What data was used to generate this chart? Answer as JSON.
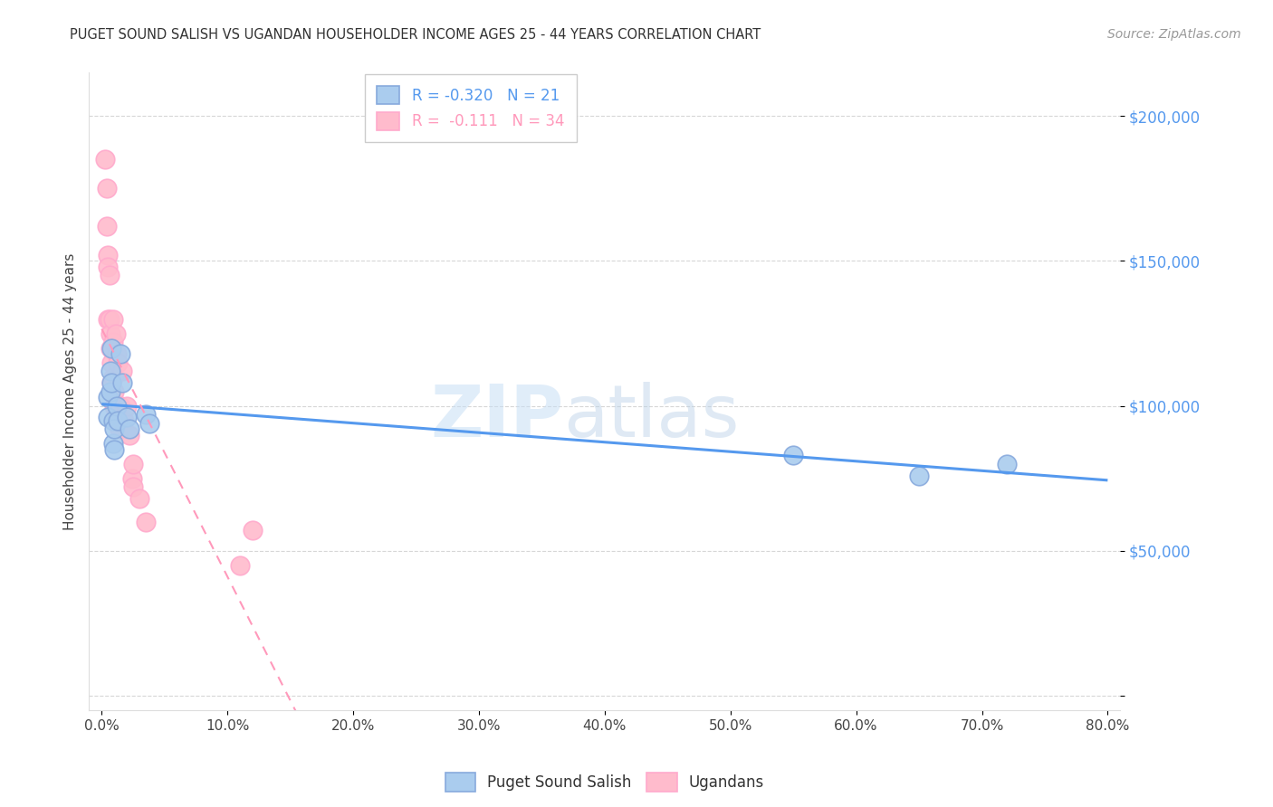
{
  "title": "PUGET SOUND SALISH VS UGANDAN HOUSEHOLDER INCOME AGES 25 - 44 YEARS CORRELATION CHART",
  "source": "Source: ZipAtlas.com",
  "ylabel": "Householder Income Ages 25 - 44 years",
  "xlabel_ticks": [
    "0.0%",
    "10.0%",
    "20.0%",
    "30.0%",
    "40.0%",
    "50.0%",
    "60.0%",
    "70.0%",
    "80.0%"
  ],
  "xlabel_vals": [
    0.0,
    0.1,
    0.2,
    0.3,
    0.4,
    0.5,
    0.6,
    0.7,
    0.8
  ],
  "ylim": [
    -5000,
    215000
  ],
  "xlim": [
    -0.01,
    0.81
  ],
  "ytick_vals": [
    0,
    50000,
    100000,
    150000,
    200000
  ],
  "ytick_labels": [
    "",
    "$50,000",
    "$100,000",
    "$150,000",
    "$200,000"
  ],
  "grid_color": "#cccccc",
  "background_color": "#ffffff",
  "watermark_zip": "ZIP",
  "watermark_atlas": "atlas",
  "legend_R_blue": "-0.320",
  "legend_N_blue": "21",
  "legend_R_pink": "-0.111",
  "legend_N_pink": "34",
  "blue_fill": "#aaccee",
  "pink_fill": "#ffbbcc",
  "blue_edge": "#88aadd",
  "pink_edge": "#ffaacc",
  "blue_line_color": "#5599ee",
  "pink_line_color": "#ff99bb",
  "puget_sound_x": [
    0.005,
    0.005,
    0.007,
    0.007,
    0.008,
    0.008,
    0.009,
    0.009,
    0.01,
    0.01,
    0.012,
    0.013,
    0.015,
    0.016,
    0.02,
    0.022,
    0.035,
    0.038,
    0.55,
    0.65,
    0.72
  ],
  "puget_sound_y": [
    103000,
    96000,
    112000,
    105000,
    120000,
    108000,
    95000,
    87000,
    85000,
    92000,
    100000,
    95000,
    118000,
    108000,
    96000,
    92000,
    97000,
    94000,
    83000,
    76000,
    80000
  ],
  "ugandan_x": [
    0.003,
    0.004,
    0.004,
    0.005,
    0.005,
    0.005,
    0.006,
    0.006,
    0.007,
    0.007,
    0.008,
    0.008,
    0.009,
    0.009,
    0.009,
    0.01,
    0.01,
    0.01,
    0.011,
    0.012,
    0.013,
    0.014,
    0.015,
    0.016,
    0.018,
    0.02,
    0.022,
    0.024,
    0.025,
    0.025,
    0.03,
    0.035,
    0.12,
    0.11
  ],
  "ugandan_y": [
    185000,
    175000,
    162000,
    152000,
    148000,
    130000,
    145000,
    130000,
    125000,
    120000,
    115000,
    108000,
    130000,
    122000,
    110000,
    105000,
    100000,
    95000,
    125000,
    118000,
    115000,
    92000,
    100000,
    112000,
    95000,
    100000,
    90000,
    75000,
    80000,
    72000,
    68000,
    60000,
    57000,
    45000
  ]
}
